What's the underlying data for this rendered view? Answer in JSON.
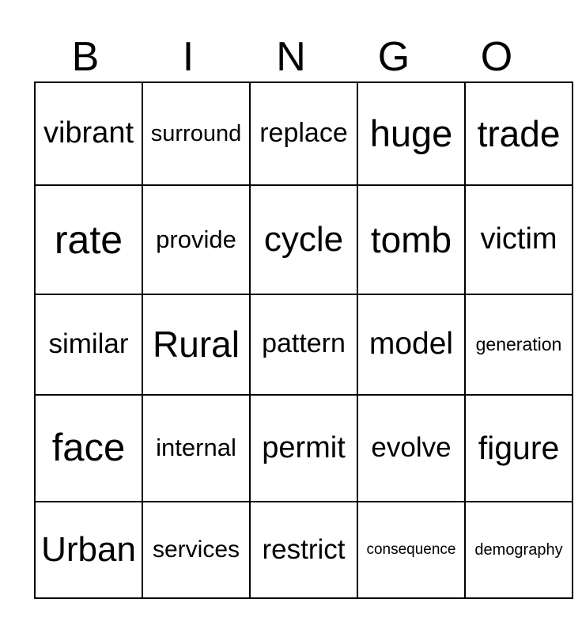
{
  "title": {
    "letters": [
      "B",
      "I",
      "N",
      "G",
      "O"
    ]
  },
  "colors": {
    "text": "#000000",
    "background": "#ffffff",
    "grid_line": "#000000"
  },
  "grid": {
    "rows": [
      [
        {
          "text": "vibrant",
          "size": 38
        },
        {
          "text": "surround",
          "size": 29
        },
        {
          "text": "replace",
          "size": 34
        },
        {
          "text": "huge",
          "size": 47
        },
        {
          "text": "trade",
          "size": 46
        }
      ],
      [
        {
          "text": "rate",
          "size": 50
        },
        {
          "text": "provide",
          "size": 31
        },
        {
          "text": "cycle",
          "size": 44
        },
        {
          "text": "tomb",
          "size": 46
        },
        {
          "text": "victim",
          "size": 38
        }
      ],
      [
        {
          "text": "similar",
          "size": 35
        },
        {
          "text": "Rural",
          "size": 46
        },
        {
          "text": "pattern",
          "size": 34
        },
        {
          "text": "model",
          "size": 39
        },
        {
          "text": "generation",
          "size": 23
        }
      ],
      [
        {
          "text": "face",
          "size": 49
        },
        {
          "text": "internal",
          "size": 31
        },
        {
          "text": "permit",
          "size": 38
        },
        {
          "text": "evolve",
          "size": 35
        },
        {
          "text": "figure",
          "size": 41
        }
      ],
      [
        {
          "text": "Urban",
          "size": 44
        },
        {
          "text": "services",
          "size": 30
        },
        {
          "text": "restrict",
          "size": 35
        },
        {
          "text": "consequence",
          "size": 19
        },
        {
          "text": "demography",
          "size": 20
        }
      ]
    ]
  }
}
